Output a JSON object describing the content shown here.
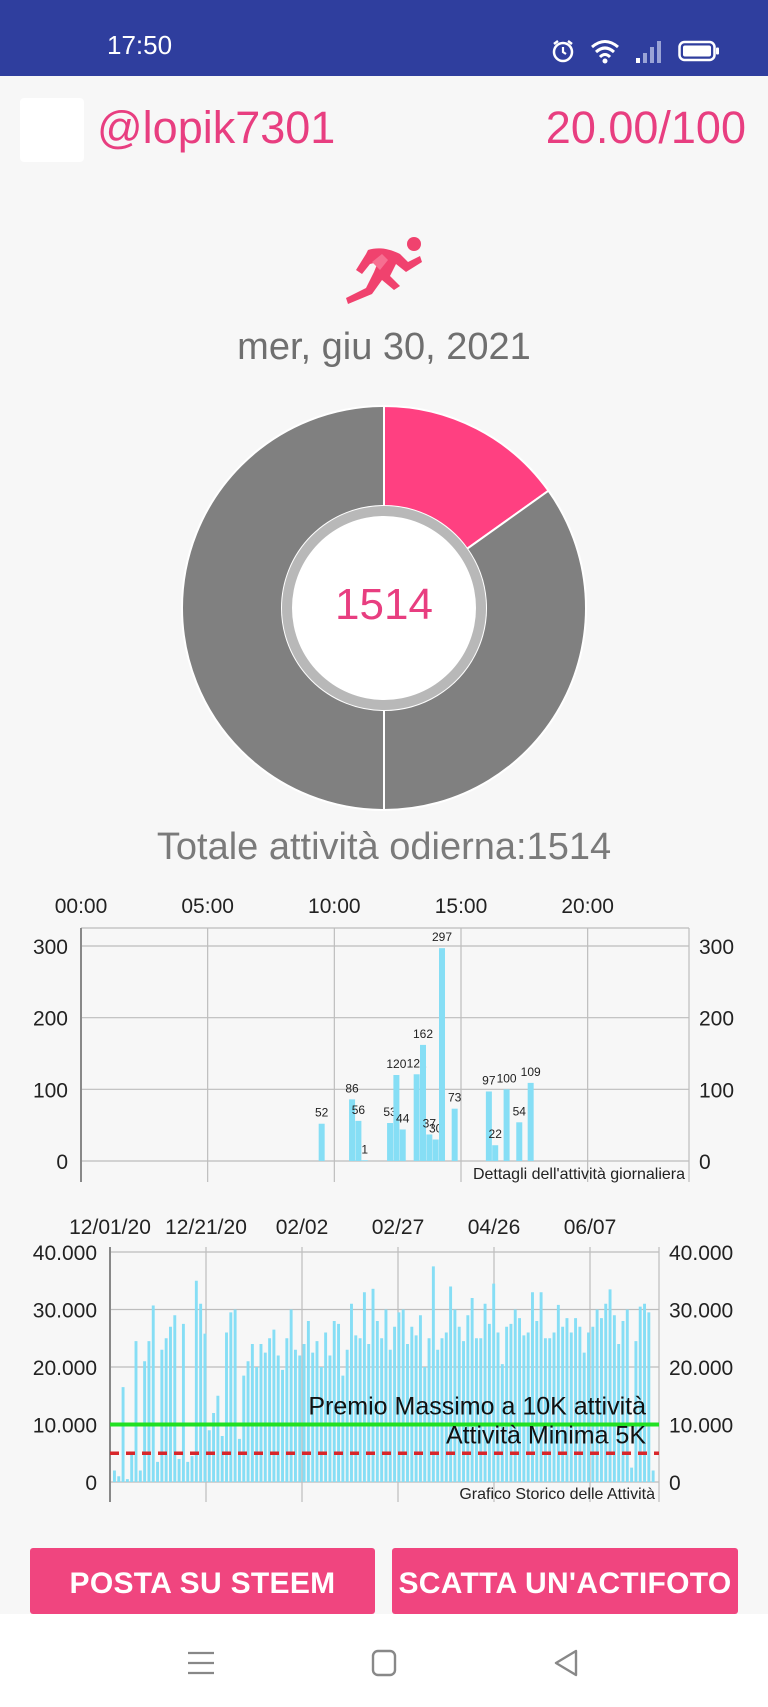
{
  "status": {
    "time": "17:50"
  },
  "header": {
    "username": "@lopik7301",
    "score": "20.00/100"
  },
  "day": {
    "date": "mer, giu 30, 2021",
    "total_steps": "1514",
    "total_label": "Totale attività odierna:1514"
  },
  "colors": {
    "accent": "#e83e80",
    "bar": "#86def5",
    "max_line": "#22e022",
    "min_line": "#d8262a",
    "donut_gray": "#808080"
  },
  "donut_chart": {
    "type": "pie",
    "center_label": "1514",
    "slices": [
      {
        "value": 1514,
        "color": "#ff4081"
      },
      {
        "value": 3486,
        "color": "#808080"
      },
      {
        "value": 5000,
        "color": "#808080"
      }
    ]
  },
  "chart_data": [
    {
      "type": "bar",
      "xlabel": "Dettagli dell'attività giornaliera",
      "x_ticks": [
        "00:00",
        "05:00",
        "10:00",
        "15:00",
        "20:00"
      ],
      "x_range": [
        0,
        24
      ],
      "ylim": [
        0,
        300
      ],
      "y_ticks": [
        "300",
        "200",
        "100",
        "0"
      ],
      "y_tick_values": [
        300,
        200,
        100,
        0
      ],
      "grid": true,
      "bars": [
        {
          "x": 9.5,
          "value": 52,
          "label": "52"
        },
        {
          "x": 10.7,
          "value": 86,
          "label": "86"
        },
        {
          "x": 10.95,
          "value": 56,
          "label": "56"
        },
        {
          "x": 11.2,
          "value": 1,
          "label": "1"
        },
        {
          "x": 12.2,
          "value": 53,
          "label": "53"
        },
        {
          "x": 12.45,
          "value": 120,
          "label": "120"
        },
        {
          "x": 12.7,
          "value": 44,
          "label": "44"
        },
        {
          "x": 13.25,
          "value": 121,
          "label": "121"
        },
        {
          "x": 13.5,
          "value": 162,
          "label": "162"
        },
        {
          "x": 13.75,
          "value": 37,
          "label": "37"
        },
        {
          "x": 14.0,
          "value": 30,
          "label": "30"
        },
        {
          "x": 14.25,
          "value": 297,
          "label": "297"
        },
        {
          "x": 14.75,
          "value": 73,
          "label": "73"
        },
        {
          "x": 16.1,
          "value": 97,
          "label": "97"
        },
        {
          "x": 16.35,
          "value": 22,
          "label": "22"
        },
        {
          "x": 16.8,
          "value": 100,
          "label": "100"
        },
        {
          "x": 17.3,
          "value": 54,
          "label": "54"
        },
        {
          "x": 17.75,
          "value": 109,
          "label": "109"
        }
      ]
    },
    {
      "type": "bar",
      "xlabel": "Grafico Storico delle Attività",
      "x_ticks": [
        "12/01/20",
        "12/21/20",
        "02/02",
        "02/27",
        "04/26",
        "06/07"
      ],
      "ylim": [
        0,
        40000
      ],
      "y_ticks": [
        "40.000",
        "30.000",
        "20.000",
        "10.000",
        "0"
      ],
      "y_tick_values": [
        40000,
        30000,
        20000,
        10000,
        0
      ],
      "grid": true,
      "lines": [
        {
          "value": 10000,
          "label": "Premio Massimo a 10K attività",
          "style": "solid",
          "color": "#22e022"
        },
        {
          "value": 5000,
          "label": "Attività Minima 5K",
          "style": "dashed",
          "color": "#d8262a"
        }
      ],
      "values": [
        2000,
        1000,
        16500,
        500,
        5000,
        24500,
        2000,
        21000,
        24500,
        30700,
        3500,
        23000,
        25000,
        27000,
        29000,
        4000,
        27500,
        3500,
        4500,
        35000,
        31000,
        25800,
        9000,
        12000,
        15000,
        8000,
        26000,
        29500,
        30000,
        7500,
        18500,
        21000,
        24000,
        20000,
        24000,
        22500,
        25000,
        26500,
        22000,
        19500,
        25000,
        30000,
        23000,
        22000,
        24000,
        28000,
        22500,
        24500,
        20000,
        26000,
        22000,
        28000,
        27500,
        18500,
        23000,
        31000,
        25500,
        25000,
        33000,
        24000,
        33600,
        28000,
        25000,
        30000,
        23000,
        27000,
        29500,
        30000,
        24000,
        27000,
        25500,
        29000,
        20000,
        25000,
        37500,
        23000,
        25000,
        26000,
        34000,
        30000,
        27000,
        24500,
        29000,
        32000,
        25000,
        25000,
        31000,
        27500,
        34500,
        26000,
        20500,
        27000,
        27500,
        30000,
        28500,
        25500,
        26000,
        33000,
        28000,
        33000,
        25000,
        25000,
        26000,
        30800,
        27000,
        28500,
        26000,
        28500,
        27000,
        22500,
        26000,
        27000,
        30000,
        28500,
        31000,
        33500,
        29000,
        24000,
        28000,
        30000,
        2500,
        24500,
        30500,
        31000,
        29500,
        2000
      ]
    }
  ],
  "buttons": {
    "post": "POSTA SU STEEM",
    "photo": "SCATTA UN'ACTIFOTO"
  }
}
